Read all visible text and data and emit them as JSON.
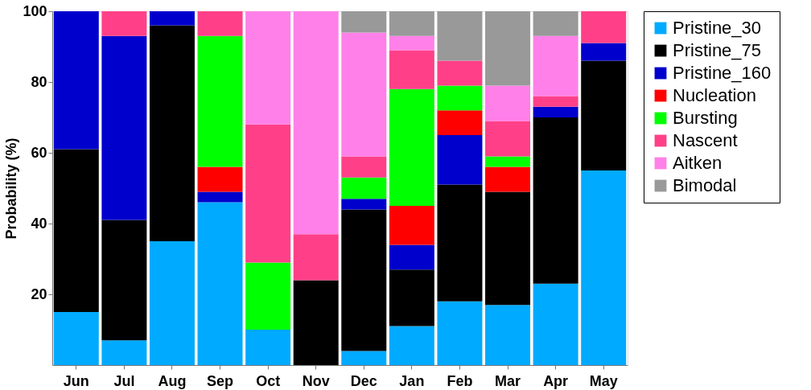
{
  "chart_data": {
    "type": "bar",
    "stacked": true,
    "ylabel": "Probability (%)",
    "categories": [
      "Jun",
      "Jul",
      "Aug",
      "Sep",
      "Oct",
      "Nov",
      "Dec",
      "Jan",
      "Feb",
      "Mar",
      "Apr",
      "May"
    ],
    "series": [
      {
        "name": "Pristine_30",
        "color": "#00aaff",
        "values": [
          15,
          7,
          35,
          46,
          10,
          null,
          4,
          11,
          18,
          17,
          23,
          55
        ]
      },
      {
        "name": "Pristine_75",
        "color": "#000000",
        "values": [
          46,
          34,
          61,
          null,
          null,
          24,
          40,
          16,
          33,
          32,
          47,
          31
        ]
      },
      {
        "name": "Pristine_160",
        "color": "#0000cc",
        "values": [
          39,
          52,
          4,
          3,
          null,
          null,
          3,
          7,
          14,
          null,
          3,
          5
        ]
      },
      {
        "name": "Nucleation",
        "color": "#ff0000",
        "values": [
          null,
          null,
          null,
          7,
          null,
          null,
          null,
          11,
          7,
          7,
          null,
          null
        ]
      },
      {
        "name": "Bursting",
        "color": "#00ff00",
        "values": [
          null,
          null,
          null,
          37,
          19,
          null,
          6,
          33,
          7,
          3,
          null,
          null
        ]
      },
      {
        "name": "Nascent",
        "color": "#ff4088",
        "values": [
          null,
          7,
          null,
          7,
          39,
          13,
          6,
          11,
          7,
          10,
          3,
          9
        ]
      },
      {
        "name": "Aitken",
        "color": "#ff80e8",
        "values": [
          null,
          null,
          null,
          null,
          32,
          63,
          35,
          4,
          null,
          10,
          17,
          null
        ]
      },
      {
        "name": "Bimodal",
        "color": "#999999",
        "values": [
          null,
          null,
          null,
          null,
          null,
          null,
          6,
          7,
          14,
          21,
          7,
          null
        ]
      }
    ],
    "ylim": [
      0,
      100
    ],
    "yticks": [
      20,
      40,
      60,
      80,
      100
    ],
    "grid": false,
    "legend": "right"
  }
}
